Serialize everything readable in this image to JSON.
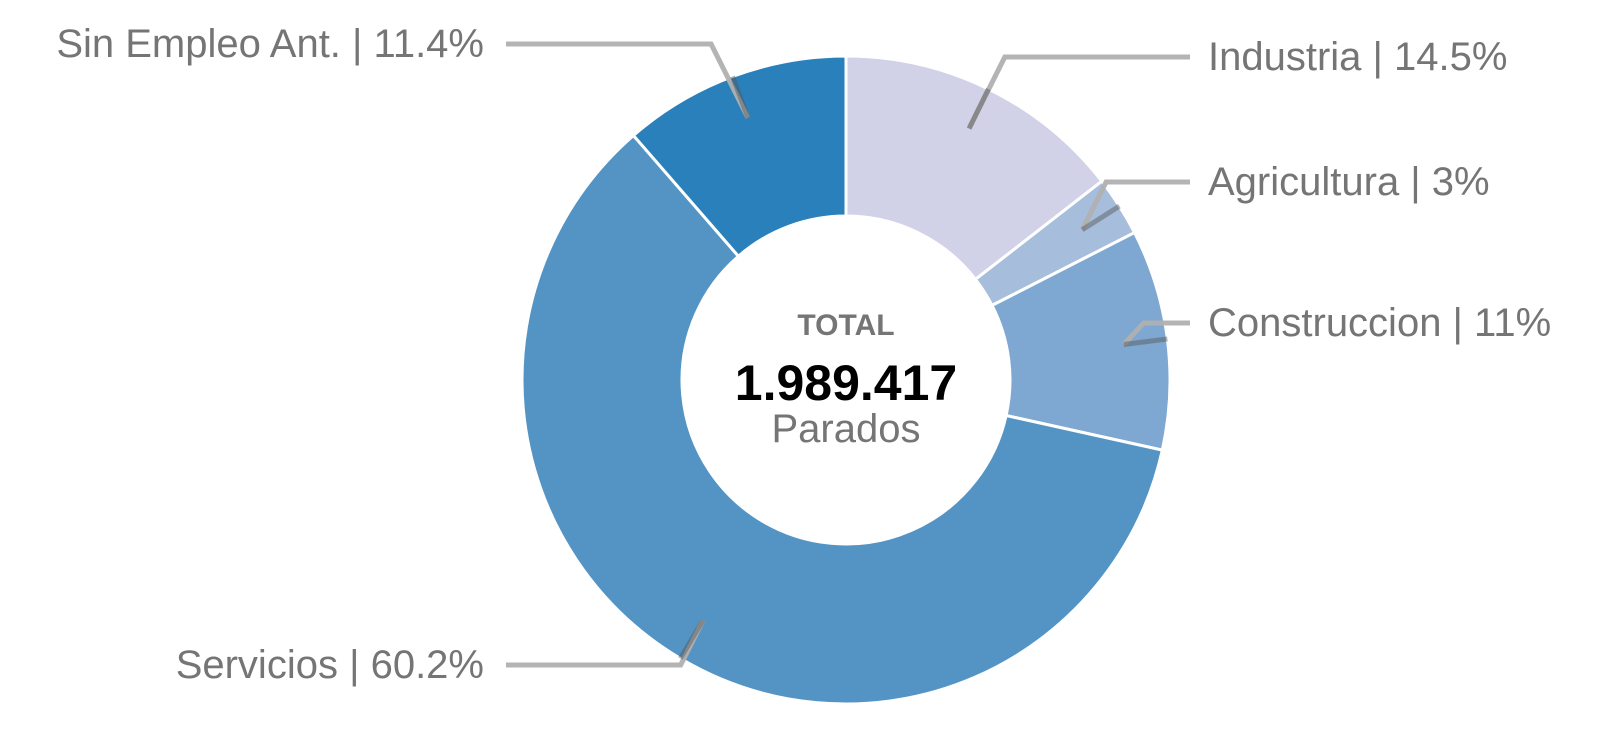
{
  "chart_data": {
    "type": "pie",
    "variant": "donut",
    "slices": [
      {
        "name": "Industria",
        "value": 14.5,
        "label": "Industria | 14.5%",
        "color": "#d1d2e8"
      },
      {
        "name": "Agricultura",
        "value": 3,
        "label": "Agricultura | 3%",
        "color": "#a6bddb"
      },
      {
        "name": "Construccion",
        "value": 11,
        "label": "Construccion | 11%",
        "color": "#7ea8d1"
      },
      {
        "name": "Servicios",
        "value": 60.2,
        "label": "Servicios | 60.2%",
        "color": "#5394c4"
      },
      {
        "name": "Sin Empleo Ant.",
        "value": 11.4,
        "label": "Sin Empleo Ant. | 11.4%",
        "color": "#2a80bb"
      }
    ],
    "center": {
      "title": "TOTAL",
      "value": "1.989.417",
      "subtitle": "Parados"
    },
    "leader_line_color": "#b0b0b0"
  }
}
